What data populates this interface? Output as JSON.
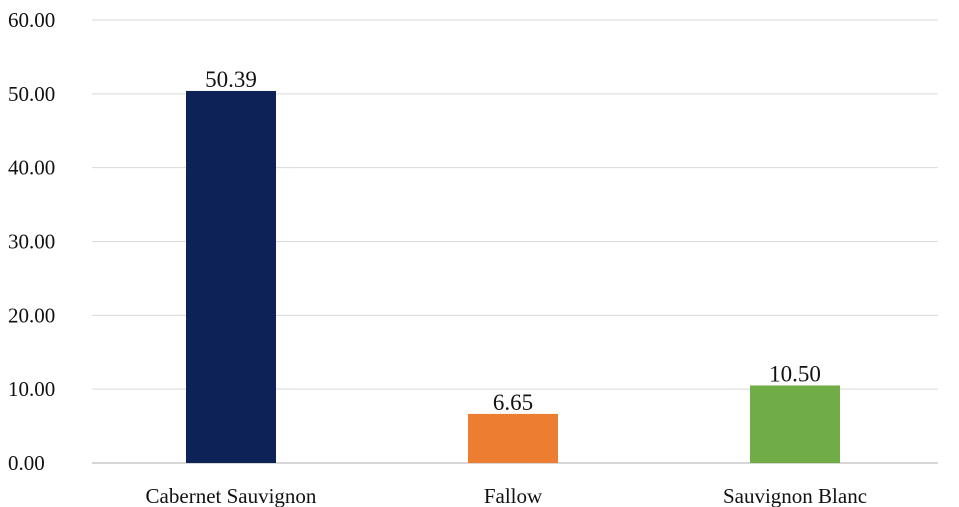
{
  "chart_data": {
    "type": "bar",
    "title": "",
    "xlabel": "",
    "ylabel": "",
    "categories": [
      "Cabernet Sauvignon",
      "Fallow",
      "Sauvignon Blanc"
    ],
    "values": [
      50.39,
      6.65,
      10.5
    ],
    "value_labels": [
      "50.39",
      "6.65",
      "10.50"
    ],
    "colors": [
      "#0d2257",
      "#ed7d31",
      "#70ad47"
    ],
    "ylim": [
      0,
      60
    ],
    "yticks": [
      0,
      10,
      20,
      30,
      40,
      50,
      60
    ],
    "ytick_labels": [
      "0.00",
      "10.00",
      "20.00",
      "30.00",
      "40.00",
      "50.00",
      "60.00"
    ],
    "grid": true,
    "legend": "none"
  }
}
